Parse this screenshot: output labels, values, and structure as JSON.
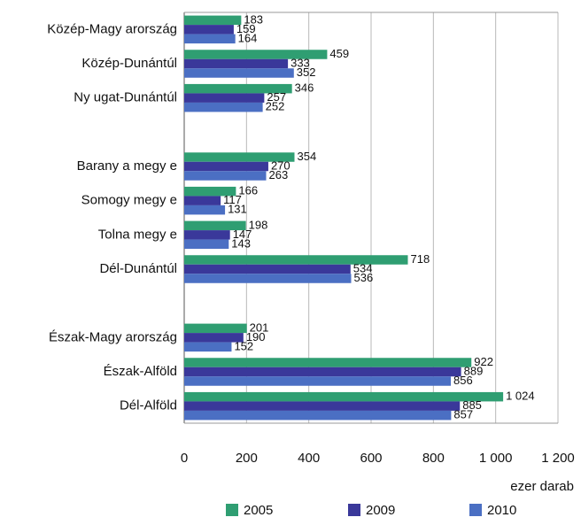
{
  "chart_data": {
    "type": "bar",
    "orientation": "horizontal",
    "categories": [
      "Közép-Magy arország",
      "Közép-Dunántúl",
      "Ny ugat-Dunántúl",
      null,
      "Barany a megy e",
      "Somogy  megy e",
      "Tolna megy e",
      "Dél-Dunántúl",
      null,
      "Észak-Magy arország",
      "Észak-Alföld",
      "Dél-Alföld"
    ],
    "series": [
      {
        "name": "2005",
        "color": "#2f9e72",
        "values": [
          183,
          459,
          346,
          null,
          354,
          166,
          198,
          718,
          null,
          201,
          922,
          1024
        ],
        "value_labels": [
          "183",
          "459",
          "346",
          null,
          "354",
          "166",
          "198",
          "718",
          null,
          "201",
          "922",
          "1 024"
        ]
      },
      {
        "name": "2009",
        "color": "#3a389a",
        "values": [
          159,
          333,
          257,
          null,
          270,
          117,
          147,
          534,
          null,
          190,
          889,
          885
        ]
      },
      {
        "name": "2010",
        "color": "#4b6fc3",
        "values": [
          164,
          352,
          252,
          null,
          263,
          131,
          143,
          536,
          null,
          152,
          856,
          857
        ]
      }
    ],
    "xlim": [
      0,
      1200
    ],
    "xticks": [
      0,
      200,
      400,
      600,
      800,
      {
        "value": 1000,
        "label": "1 000"
      },
      {
        "value": 1200,
        "label": "1 200"
      }
    ],
    "x_axis_label": "ezer darab",
    "grid": true,
    "legend": "bottom"
  }
}
